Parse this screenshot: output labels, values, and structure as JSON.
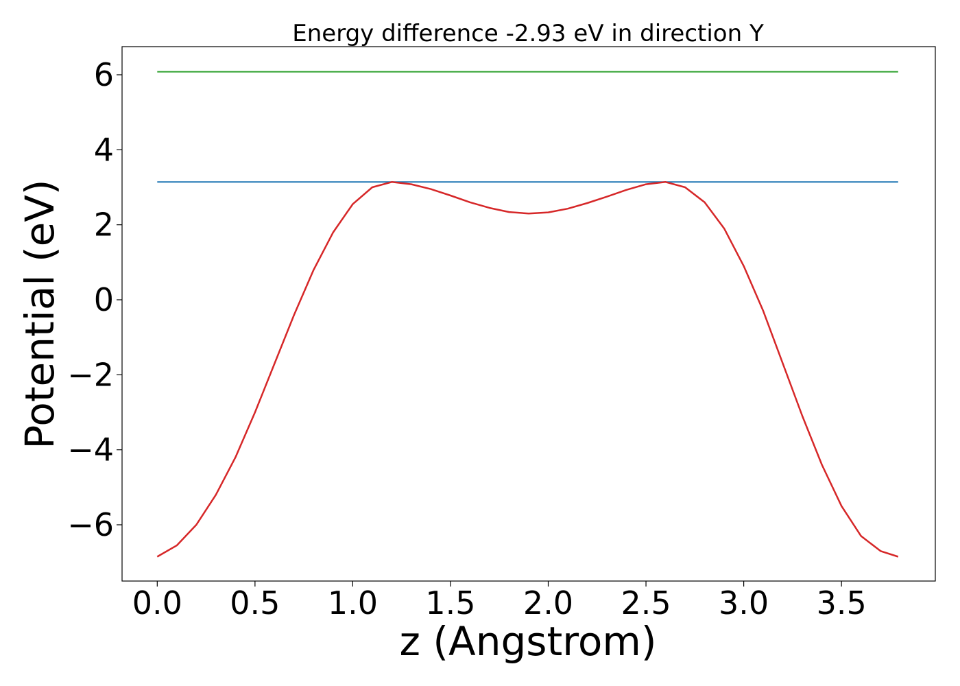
{
  "chart_data": {
    "type": "line",
    "title": "Energy difference -2.93 eV in direction Y",
    "xlabel": "z (Angstrom)",
    "ylabel": "Potential (eV)",
    "xlim": [
      -0.18,
      3.98
    ],
    "ylim": [
      -7.5,
      6.75
    ],
    "grid": false,
    "xticks": [
      0.0,
      0.5,
      1.0,
      1.5,
      2.0,
      2.5,
      3.0,
      3.5
    ],
    "xtick_labels": [
      "0.0",
      "0.5",
      "1.0",
      "1.5",
      "2.0",
      "2.5",
      "3.0",
      "3.5"
    ],
    "yticks": [
      -6,
      -4,
      -2,
      0,
      2,
      4,
      6
    ],
    "ytick_labels": [
      "−6",
      "−4",
      "−2",
      "0",
      "2",
      "4",
      "6"
    ],
    "series": [
      {
        "color": "#2ca02c",
        "x": [
          0.0,
          3.79
        ],
        "y": [
          6.08,
          6.08
        ]
      },
      {
        "color": "#1f77b4",
        "x": [
          0.0,
          3.79
        ],
        "y": [
          3.14,
          3.14
        ]
      },
      {
        "color": "#d62728",
        "x": [
          0.0,
          0.1,
          0.2,
          0.3,
          0.4,
          0.5,
          0.6,
          0.7,
          0.8,
          0.9,
          1.0,
          1.1,
          1.2,
          1.3,
          1.4,
          1.5,
          1.6,
          1.7,
          1.8,
          1.9,
          2.0,
          2.1,
          2.2,
          2.3,
          2.4,
          2.5,
          2.6,
          2.7,
          2.8,
          2.9,
          3.0,
          3.1,
          3.2,
          3.3,
          3.4,
          3.5,
          3.6,
          3.7,
          3.79
        ],
        "y": [
          -6.85,
          -6.55,
          -6.0,
          -5.2,
          -4.2,
          -3.0,
          -1.7,
          -0.4,
          0.8,
          1.8,
          2.55,
          3.0,
          3.14,
          3.08,
          2.95,
          2.78,
          2.6,
          2.45,
          2.34,
          2.3,
          2.33,
          2.43,
          2.58,
          2.75,
          2.93,
          3.08,
          3.14,
          3.0,
          2.6,
          1.9,
          0.9,
          -0.3,
          -1.7,
          -3.1,
          -4.4,
          -5.5,
          -6.3,
          -6.7,
          -6.85
        ]
      }
    ]
  }
}
